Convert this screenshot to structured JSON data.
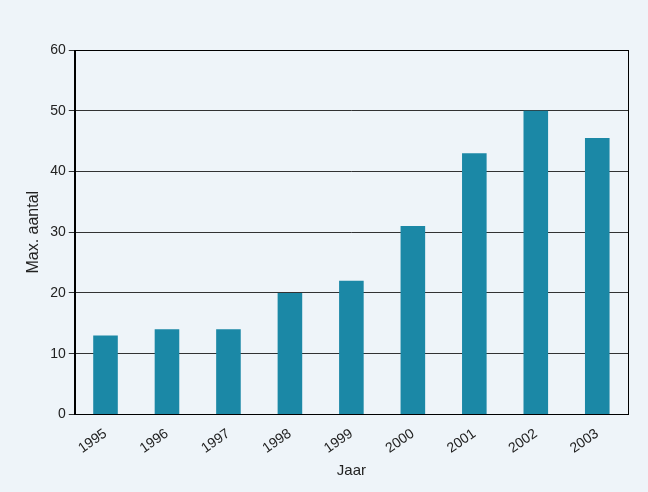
{
  "chart_data": {
    "type": "bar",
    "x_label": "Jaar",
    "y_label": "Max. aantal",
    "categories": [
      "1995",
      "1996",
      "1997",
      "1998",
      "1999",
      "2000",
      "2001",
      "2002",
      "2003"
    ],
    "values": [
      13,
      14,
      14,
      20,
      22,
      31,
      43,
      50,
      45.5
    ],
    "color": "#1b88a6",
    "ylim": [
      0,
      60
    ],
    "yticks": [
      0,
      10,
      20,
      30,
      40,
      50,
      60
    ],
    "grid": true
  }
}
